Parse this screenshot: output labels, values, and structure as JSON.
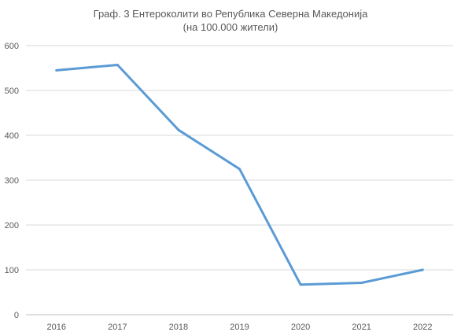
{
  "chart_data": {
    "type": "line",
    "title": "Граф. 3 Ентероколити во Република Северна Македонија",
    "subtitle": "(на 100.000 жители)",
    "categories": [
      "2016",
      "2017",
      "2018",
      "2019",
      "2020",
      "2021",
      "2022"
    ],
    "series": [
      {
        "values": [
          545,
          557,
          412,
          325,
          67,
          71,
          100
        ]
      }
    ],
    "ylim": [
      0,
      600
    ],
    "yticks": [
      0,
      100,
      200,
      300,
      400,
      500,
      600
    ],
    "grid": true,
    "legend": "none",
    "colors": {
      "line": "#5B9BD5",
      "grid": "#D9D9D9",
      "text": "#595959"
    }
  }
}
